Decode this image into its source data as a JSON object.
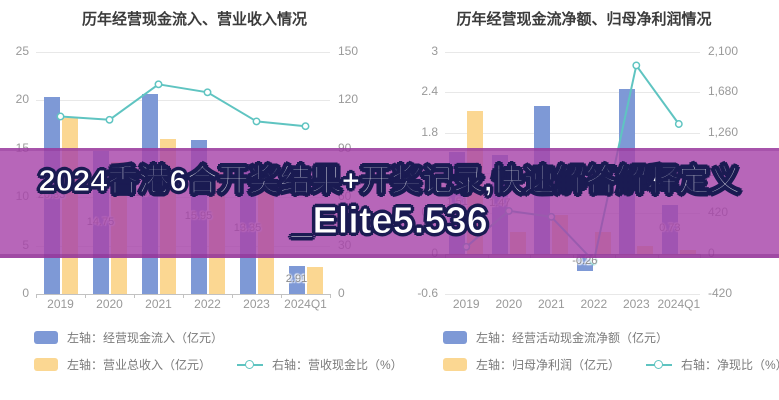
{
  "overlay": {
    "line1": "2024香港6合开奖结果+开奖记录,快速解答解释定义",
    "line2": "_Elite5.536"
  },
  "colors": {
    "bar_blue": "#7e99d6",
    "bar_yellow": "#fbd792",
    "line_teal": "#5fc4c1",
    "grid": "#e8e8e8",
    "axis_zero": "#c2c2c2",
    "tick_text": "#999999",
    "title_text": "#3b3b3b",
    "data_label": "#8b8b8b",
    "legend_text": "#7a7a7a",
    "banner_bg": "rgba(167,68,170,0.82)",
    "banner_text": "#ffffff",
    "banner_outline": "#1a1b52"
  },
  "chart_data": [
    {
      "type": "bar",
      "title": "历年经营现金流入、营业收入情况",
      "categories": [
        "2019",
        "2020",
        "2021",
        "2022",
        "2023",
        "2024Q1"
      ],
      "left_axis": {
        "min": 0,
        "max": 25,
        "ticks": [
          25,
          20,
          15,
          10,
          5,
          0
        ]
      },
      "right_axis": {
        "min": 0,
        "max": 150,
        "ticks": [
          150,
          120,
          90,
          60,
          30,
          0
        ]
      },
      "grid": true,
      "legend_position": "bottom-left",
      "series": [
        {
          "name": "左轴：经营现金流入（亿元）",
          "type": "bar",
          "axis": "left",
          "color": "bar_blue",
          "values": [
            20.33,
            14.75,
            20.69,
            15.95,
            13.35,
            2.91
          ],
          "labels": [
            "20.33",
            "14.75",
            "20.69",
            "15.95",
            "13.35",
            "2.91"
          ]
        },
        {
          "name": "左轴：营业总收入（亿元）",
          "type": "bar",
          "axis": "left",
          "color": "bar_yellow",
          "values": [
            18.2,
            13.6,
            16.0,
            12.8,
            12.5,
            2.8
          ],
          "labels": [
            null,
            null,
            null,
            null,
            null,
            null
          ]
        },
        {
          "name": "右轴：营收现金比（%）",
          "type": "line",
          "axis": "right",
          "color": "line_teal",
          "values": [
            110,
            108,
            130,
            125,
            107,
            104
          ],
          "labels": [
            null,
            null,
            null,
            null,
            null,
            null
          ]
        }
      ],
      "legend_rows": [
        [
          0
        ],
        [
          1,
          2
        ]
      ]
    },
    {
      "type": "bar",
      "title": "历年经营现金流净额、归母净利润情况",
      "categories": [
        "2019",
        "2020",
        "2021",
        "2022",
        "2023",
        "2024Q1"
      ],
      "left_axis": {
        "min": -0.6,
        "max": 3,
        "ticks": [
          3,
          2.4,
          1.8,
          1.2,
          0.6,
          0,
          -0.6
        ]
      },
      "right_axis": {
        "min": -420,
        "max": 2100,
        "ticks": [
          "2,100",
          "1,680",
          "1,260",
          "840",
          "420",
          "0",
          "-420"
        ]
      },
      "grid": true,
      "legend_position": "bottom-left",
      "series": [
        {
          "name": "左轴：经营活动现金流净额（亿元）",
          "type": "bar",
          "axis": "left",
          "color": "bar_blue",
          "values": [
            1.51,
            1.47,
            2.2,
            -0.26,
            2.45,
            0.73
          ],
          "labels": [
            "1.51",
            "1.47",
            null,
            "-0.26",
            null,
            "0.73"
          ]
        },
        {
          "name": "左轴：归母净利润（亿元）",
          "type": "bar",
          "axis": "left",
          "color": "bar_yellow",
          "values": [
            2.13,
            0.33,
            0.57,
            0.32,
            0.12,
            0.05
          ],
          "labels": [
            null,
            null,
            null,
            null,
            null,
            null
          ]
        },
        {
          "name": "右轴：净现比（%）",
          "type": "line",
          "axis": "right",
          "color": "line_teal",
          "values": [
            71,
            445,
            384,
            -81,
            1960,
            1350
          ],
          "labels": [
            null,
            null,
            null,
            null,
            null,
            null
          ]
        }
      ],
      "legend_rows": [
        [
          0
        ],
        [
          1,
          2
        ]
      ]
    }
  ]
}
